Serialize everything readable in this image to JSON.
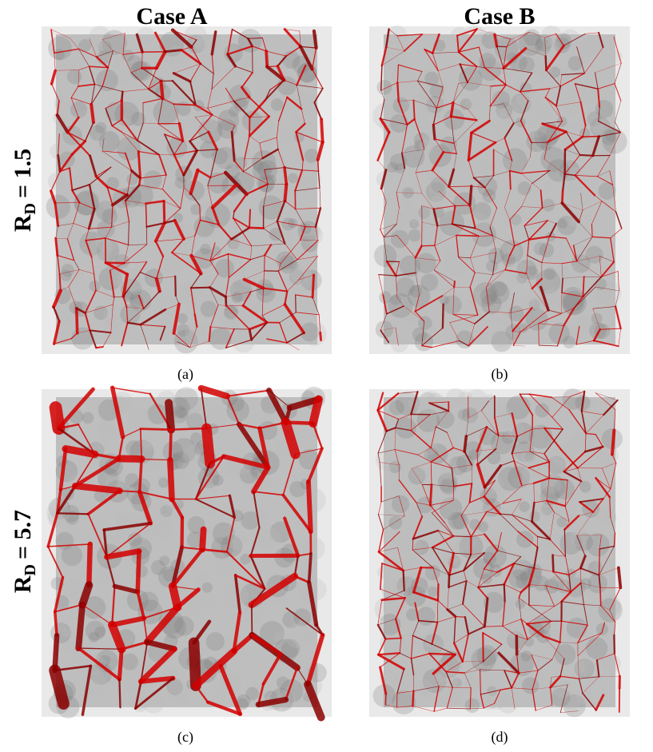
{
  "columns": [
    "Case A",
    "Case B"
  ],
  "rows": [
    {
      "symbol": "R",
      "subscript": "D",
      "rest": "= 1.5"
    },
    {
      "symbol": "R",
      "subscript": "D",
      "rest": "= 5.7"
    }
  ],
  "captions": [
    "(a)",
    "(b)",
    "(c)",
    "(d)"
  ]
}
